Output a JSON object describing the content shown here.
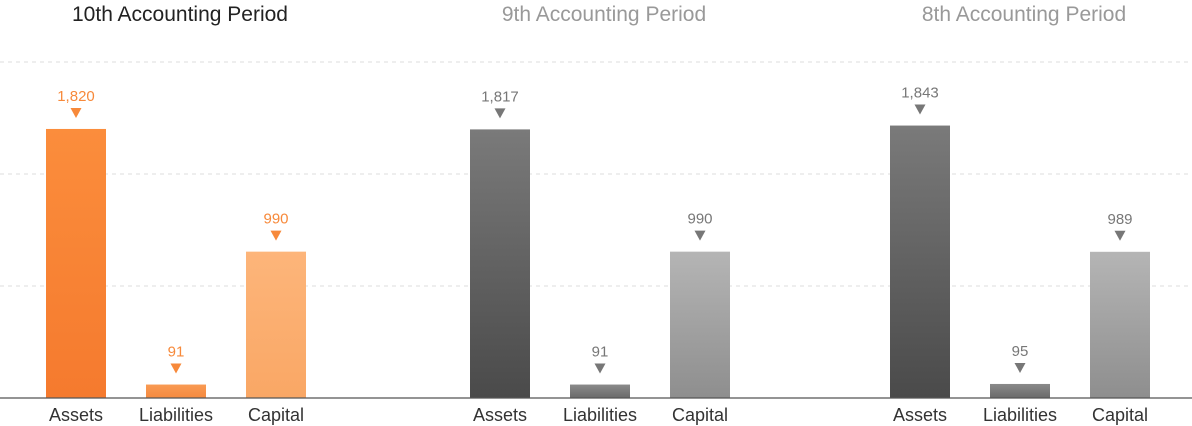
{
  "chart_data": {
    "type": "bar",
    "ylim": [
      0,
      2300
    ],
    "grid": true,
    "panels": [
      {
        "title": "10th Accounting Period",
        "highlight": true,
        "categories": [
          "Assets",
          "Liabilities",
          "Capital"
        ],
        "values": [
          1820,
          91,
          990
        ],
        "value_labels": [
          "1,820",
          "91",
          "990"
        ]
      },
      {
        "title": "9th Accounting Period",
        "highlight": false,
        "categories": [
          "Assets",
          "Liabilities",
          "Capital"
        ],
        "values": [
          1817,
          91,
          990
        ],
        "value_labels": [
          "1,817",
          "91",
          "990"
        ]
      },
      {
        "title": "8th Accounting Period",
        "highlight": false,
        "categories": [
          "Assets",
          "Liabilities",
          "Capital"
        ],
        "values": [
          1843,
          95,
          989
        ],
        "value_labels": [
          "1,843",
          "95",
          "989"
        ]
      }
    ]
  },
  "colors": {
    "highlight_title": "#222222",
    "muted_title": "#999999",
    "highlight_label": "#f7893a",
    "muted_label": "#777777",
    "highlight_assets": [
      "#fb8d3c",
      "#f57a2e"
    ],
    "highlight_liabilities": [
      "#f99a53",
      "#f58a3f"
    ],
    "highlight_capital": [
      "#fdb57a",
      "#f9a765"
    ],
    "muted_assets": [
      "#7a7a7a",
      "#4a4a4a"
    ],
    "muted_liabilities": [
      "#8a8a8a",
      "#6a6a6a"
    ],
    "muted_capital": [
      "#b5b5b5",
      "#8e8e8e"
    ],
    "gridline": "#dedede",
    "baseline": "#555555"
  }
}
